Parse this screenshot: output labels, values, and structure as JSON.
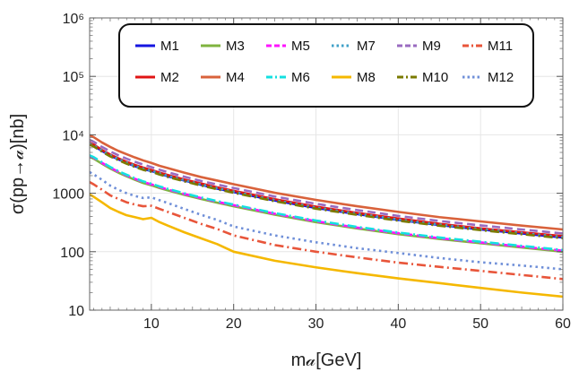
{
  "chart_data": {
    "type": "line",
    "title": "",
    "xlabel": "m𝒶[GeV]",
    "ylabel": "σ(pp→𝒶)[nb]",
    "xlim": [
      2.5,
      60
    ],
    "ylim": [
      10,
      1000000
    ],
    "yscale": "log",
    "grid": true,
    "legend_position": "top-center",
    "x_ticks": [
      10,
      20,
      30,
      40,
      50,
      60
    ],
    "x_tick_labels": [
      "10",
      "20",
      "30",
      "40",
      "50",
      "60"
    ],
    "y_ticks": [
      10,
      100,
      1000,
      10000,
      100000,
      1000000
    ],
    "y_tick_labels": [
      "10",
      "100",
      "1000",
      "10⁴",
      "10⁵",
      "10⁶"
    ],
    "x": [
      2.5,
      3,
      4,
      5,
      6,
      7,
      8,
      9,
      10,
      11,
      12,
      14,
      16,
      18,
      20,
      25,
      30,
      35,
      40,
      45,
      50,
      55,
      60
    ],
    "series": [
      {
        "name": "M1",
        "color": "#1515e0",
        "dash": "solid",
        "values": [
          7000,
          6500,
          5300,
          4400,
          3800,
          3300,
          2900,
          2600,
          2400,
          2150,
          1950,
          1650,
          1400,
          1200,
          1050,
          750,
          560,
          440,
          350,
          285,
          240,
          205,
          175
        ]
      },
      {
        "name": "M2",
        "color": "#e01414",
        "dash": "solid",
        "values": [
          7300,
          6800,
          5500,
          4600,
          3950,
          3450,
          3050,
          2750,
          2500,
          2250,
          2050,
          1720,
          1470,
          1260,
          1100,
          790,
          590,
          460,
          370,
          300,
          250,
          215,
          185
        ]
      },
      {
        "name": "M3",
        "color": "#7fb33f",
        "dash": "solid",
        "values": [
          4200,
          3900,
          3200,
          2650,
          2250,
          1950,
          1700,
          1500,
          1370,
          1230,
          1120,
          940,
          800,
          690,
          600,
          430,
          320,
          250,
          200,
          165,
          140,
          118,
          100
        ]
      },
      {
        "name": "M4",
        "color": "#d9623b",
        "dash": "solid",
        "values": [
          9800,
          9100,
          7400,
          6200,
          5300,
          4650,
          4100,
          3650,
          3300,
          2950,
          2700,
          2250,
          1900,
          1650,
          1430,
          1020,
          770,
          600,
          480,
          390,
          330,
          280,
          240
        ]
      },
      {
        "name": "M5",
        "color": "#ff14ff",
        "dash": "dash",
        "values": [
          4350,
          4050,
          3320,
          2750,
          2330,
          2020,
          1770,
          1560,
          1420,
          1280,
          1160,
          975,
          830,
          715,
          625,
          445,
          332,
          258,
          207,
          170,
          144,
          122,
          104
        ]
      },
      {
        "name": "M6",
        "color": "#14e0e0",
        "dash": "dashdot",
        "values": [
          4450,
          4150,
          3400,
          2820,
          2390,
          2070,
          1810,
          1600,
          1455,
          1310,
          1190,
          1000,
          850,
          735,
          640,
          458,
          342,
          266,
          213,
          175,
          148,
          126,
          107
        ]
      },
      {
        "name": "M7",
        "color": "#3fa0c8",
        "dash": "dot",
        "values": [
          7100,
          6600,
          5400,
          4480,
          3860,
          3360,
          2960,
          2650,
          2440,
          2190,
          1990,
          1680,
          1425,
          1225,
          1070,
          765,
          571,
          448,
          357,
          291,
          245,
          209,
          179
        ]
      },
      {
        "name": "M8",
        "color": "#f5b800",
        "dash": "solid",
        "values": [
          950,
          870,
          700,
          560,
          480,
          420,
          390,
          360,
          380,
          320,
          280,
          215,
          170,
          135,
          100,
          70,
          54,
          43,
          35,
          29,
          24,
          20,
          17
        ]
      },
      {
        "name": "M9",
        "color": "#9a6bc0",
        "dash": "dash",
        "values": [
          8200,
          7600,
          6200,
          5200,
          4450,
          3900,
          3450,
          3100,
          2800,
          2520,
          2290,
          1920,
          1630,
          1410,
          1230,
          880,
          660,
          515,
          410,
          335,
          282,
          240,
          205
        ]
      },
      {
        "name": "M10",
        "color": "#7a7a00",
        "dash": "dashdot",
        "values": [
          6800,
          6300,
          5150,
          4270,
          3680,
          3200,
          2820,
          2520,
          2330,
          2090,
          1900,
          1600,
          1360,
          1170,
          1020,
          730,
          545,
          428,
          340,
          278,
          234,
          199,
          170
        ]
      },
      {
        "name": "M11",
        "color": "#e8553a",
        "dash": "dashdot",
        "values": [
          1550,
          1420,
          1150,
          920,
          800,
          700,
          640,
          600,
          610,
          540,
          480,
          380,
          300,
          245,
          190,
          130,
          100,
          80,
          65,
          55,
          47,
          40,
          34
        ]
      },
      {
        "name": "M12",
        "color": "#6f8fd8",
        "dash": "dot",
        "values": [
          2300,
          2100,
          1700,
          1350,
          1150,
          1000,
          900,
          830,
          850,
          760,
          680,
          540,
          430,
          350,
          270,
          190,
          145,
          115,
          95,
          78,
          66,
          58,
          50
        ]
      }
    ]
  }
}
